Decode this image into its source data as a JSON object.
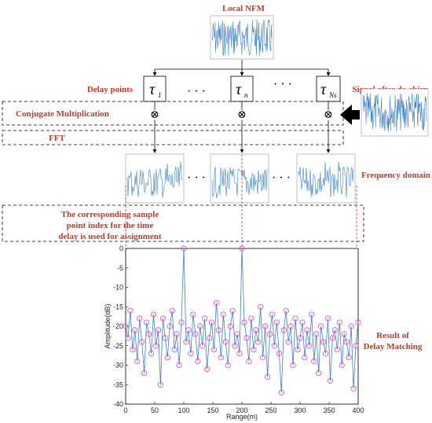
{
  "labels": {
    "local_nfm": "Local NFM",
    "delay_points": "Delay points",
    "signal_after_dechirp": "Signal after de-chirp",
    "conjugate_multiplication": "Conjugate Multiplication",
    "fft": "FFT",
    "frequency_domain": "Frequency domain",
    "assignment_line1": "The corresponding sample",
    "assignment_line2": "point index for the time",
    "assignment_line3": "delay is used for assignment",
    "result_line1": "Result of",
    "result_line2": "Delay Matching"
  },
  "delays": [
    {
      "sym": "τ",
      "sub": "1"
    },
    {
      "sym": "τ",
      "sub": "n"
    },
    {
      "sym": "τ",
      "sub": "Ns"
    }
  ],
  "ellipsis": "· · ·",
  "multiply_symbol": "⊗",
  "colors": {
    "label_red": "#c0392b",
    "signal_blue": "#3d7fc1",
    "marker_magenta": "#d63fd6",
    "guide_red": "#b03a2e"
  },
  "chart_data": {
    "type": "line",
    "xlabel": "Range(m)",
    "ylabel": "Amplitude(dB)",
    "xlim": [
      0,
      400
    ],
    "ylim": [
      -40,
      0
    ],
    "xticks": [
      "0",
      "50",
      "100",
      "150",
      "200",
      "250",
      "300",
      "350",
      "400"
    ],
    "yticks": [
      "0",
      "-5",
      "-10",
      "-15",
      "-20",
      "-25",
      "-30",
      "-35",
      "-40"
    ],
    "grid": false,
    "markers": "circle",
    "x": [
      0,
      4,
      8,
      12,
      16,
      20,
      24,
      28,
      32,
      36,
      40,
      44,
      48,
      52,
      56,
      60,
      64,
      68,
      72,
      76,
      80,
      84,
      88,
      92,
      96,
      100,
      104,
      108,
      112,
      116,
      120,
      124,
      128,
      132,
      136,
      140,
      144,
      148,
      152,
      156,
      160,
      164,
      168,
      172,
      176,
      180,
      184,
      188,
      192,
      196,
      200,
      204,
      208,
      212,
      216,
      220,
      224,
      228,
      232,
      236,
      240,
      244,
      248,
      252,
      256,
      260,
      264,
      268,
      272,
      276,
      280,
      284,
      288,
      292,
      296,
      300,
      304,
      308,
      312,
      316,
      320,
      324,
      328,
      332,
      336,
      340,
      344,
      348,
      352,
      356,
      360,
      364,
      368,
      372,
      376,
      380,
      384,
      388,
      392,
      396,
      400
    ],
    "y": [
      -20,
      -23,
      -16,
      -26,
      -21,
      -29,
      -18,
      -24,
      -32,
      -19,
      -22,
      -27,
      -17,
      -25,
      -21,
      -35,
      -18,
      -23,
      -28,
      -20,
      -16,
      -26,
      -22,
      -30,
      -19,
      0,
      -24,
      -21,
      -27,
      -17,
      -22,
      -29,
      -20,
      -25,
      -18,
      -31,
      -23,
      -19,
      -26,
      -14,
      -21,
      -28,
      -17,
      -24,
      -30,
      -20,
      -16,
      -25,
      -22,
      -27,
      0,
      -19,
      -23,
      -29,
      -18,
      -26,
      -21,
      -24,
      -15,
      -28,
      -20,
      -33,
      -22,
      -17,
      -25,
      -19,
      -27,
      -37,
      -21,
      -16,
      -24,
      -20,
      -30,
      -18,
      -26,
      -23,
      -19,
      -28,
      -21,
      -25,
      -17,
      -29,
      -22,
      -32,
      -20,
      -24,
      -27,
      -18,
      -34,
      -23,
      -21,
      -26,
      -19,
      -30,
      -22,
      -24,
      -28,
      -20,
      -36,
      -25,
      -19
    ]
  }
}
